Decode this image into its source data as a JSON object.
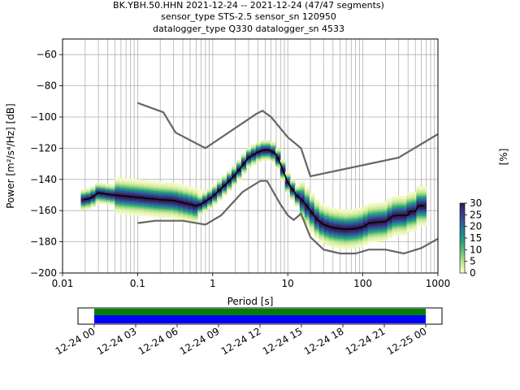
{
  "title_lines": [
    "BK.YBH.50.HHN   2021-12-24 -- 2021-12-24  (47/47 segments)",
    "sensor_type STS-2.5 sensor_sn 120950",
    "datalogger_type Q330 datalogger_sn 4533"
  ],
  "chart_data": [
    {
      "type": "heatmap",
      "xlabel": "Period [s]",
      "ylabel": "Power [m²/s⁴/Hz] [dB]",
      "xscale": "log",
      "xlim": [
        0.01,
        1000
      ],
      "ylim": [
        -200,
        -50
      ],
      "x_ticks": [
        {
          "value": 0.01,
          "label": "0.01"
        },
        {
          "value": 0.1,
          "label": "0.1"
        },
        {
          "value": 1,
          "label": "1"
        },
        {
          "value": 10,
          "label": "10"
        },
        {
          "value": 100,
          "label": "100"
        },
        {
          "value": 1000,
          "label": "1000"
        }
      ],
      "y_ticks": [
        {
          "value": -60,
          "label": "−60"
        },
        {
          "value": -80,
          "label": "−80"
        },
        {
          "value": -100,
          "label": "−100"
        },
        {
          "value": -120,
          "label": "−120"
        },
        {
          "value": -140,
          "label": "−140"
        },
        {
          "value": -160,
          "label": "−160"
        },
        {
          "value": -180,
          "label": "−180"
        },
        {
          "value": -200,
          "label": "−200"
        }
      ],
      "grid": true,
      "colors": {
        "median": "#000000",
        "noise_models": "#666666"
      },
      "noise_models": [
        {
          "points": [
            [
              0.1,
              -91
            ],
            [
              0.22,
              -97
            ],
            [
              0.32,
              -110
            ],
            [
              0.8,
              -120
            ],
            [
              3.8,
              -98
            ],
            [
              4.6,
              -96
            ],
            [
              6,
              -100
            ],
            [
              10,
              -113
            ],
            [
              15,
              -120
            ],
            [
              20,
              -138
            ],
            [
              300,
              -126
            ],
            [
              1000,
              -111
            ]
          ]
        },
        {
          "points": [
            [
              0.1,
              -168
            ],
            [
              0.17,
              -166.5
            ],
            [
              0.4,
              -166.5
            ],
            [
              0.8,
              -169
            ],
            [
              1.3,
              -163
            ],
            [
              2.5,
              -148
            ],
            [
              4.3,
              -141
            ],
            [
              5.3,
              -141
            ],
            [
              8,
              -156
            ],
            [
              10,
              -163
            ],
            [
              12,
              -166
            ],
            [
              15,
              -162
            ],
            [
              20,
              -177
            ],
            [
              30,
              -185
            ],
            [
              50,
              -187.5
            ],
            [
              80,
              -187.5
            ],
            [
              120,
              -185
            ],
            [
              200,
              -185
            ],
            [
              350,
              -187.5
            ],
            [
              600,
              -184
            ],
            [
              1000,
              -178
            ]
          ]
        }
      ],
      "median": [
        [
          0.019,
          -153
        ],
        [
          0.024,
          -152
        ],
        [
          0.03,
          -148.5
        ],
        [
          0.04,
          -149.5
        ],
        [
          0.06,
          -150.5
        ],
        [
          0.1,
          -151.5
        ],
        [
          0.2,
          -153
        ],
        [
          0.3,
          -153.5
        ],
        [
          0.5,
          -156
        ],
        [
          0.6,
          -157
        ],
        [
          0.7,
          -156
        ],
        [
          1,
          -151
        ],
        [
          1.5,
          -143
        ],
        [
          2,
          -137
        ],
        [
          3,
          -126
        ],
        [
          4,
          -122.5
        ],
        [
          5,
          -121
        ],
        [
          6,
          -121.5
        ],
        [
          7,
          -124
        ],
        [
          8,
          -130
        ],
        [
          10,
          -142
        ],
        [
          13,
          -150
        ],
        [
          16,
          -154
        ],
        [
          20,
          -160
        ],
        [
          25,
          -166
        ],
        [
          30,
          -169
        ],
        [
          40,
          -171
        ],
        [
          60,
          -172
        ],
        [
          80,
          -171.5
        ],
        [
          100,
          -170.5
        ],
        [
          120,
          -168
        ],
        [
          150,
          -167.5
        ],
        [
          200,
          -167
        ],
        [
          250,
          -163.5
        ],
        [
          300,
          -163
        ],
        [
          400,
          -163
        ],
        [
          420,
          -160.5
        ],
        [
          500,
          -160.5
        ],
        [
          550,
          -157
        ],
        [
          650,
          -157
        ]
      ],
      "colorbar": {
        "label": "[%]",
        "ticks": [
          0,
          5,
          10,
          15,
          20,
          25,
          30
        ],
        "tick_labels": [
          "0",
          "5",
          "10",
          "15",
          "20",
          "25",
          "30"
        ],
        "range": [
          0,
          30
        ],
        "colors": [
          "#ffffcc",
          "#c2e699",
          "#78c679",
          "#2aa67a",
          "#1f8a8c",
          "#2c5f9e",
          "#3b3b8c",
          "#2d1a4a"
        ]
      }
    },
    {
      "type": "timeline",
      "x_ticks": [
        "12-24 00",
        "12-24 03",
        "12-24 06",
        "12-24 09",
        "12-24 12",
        "12-24 15",
        "12-24 18",
        "12-24 21",
        "12-25 00"
      ],
      "coverage_colors": {
        "data": "#0000ff",
        "gaps": "#008000"
      }
    }
  ]
}
